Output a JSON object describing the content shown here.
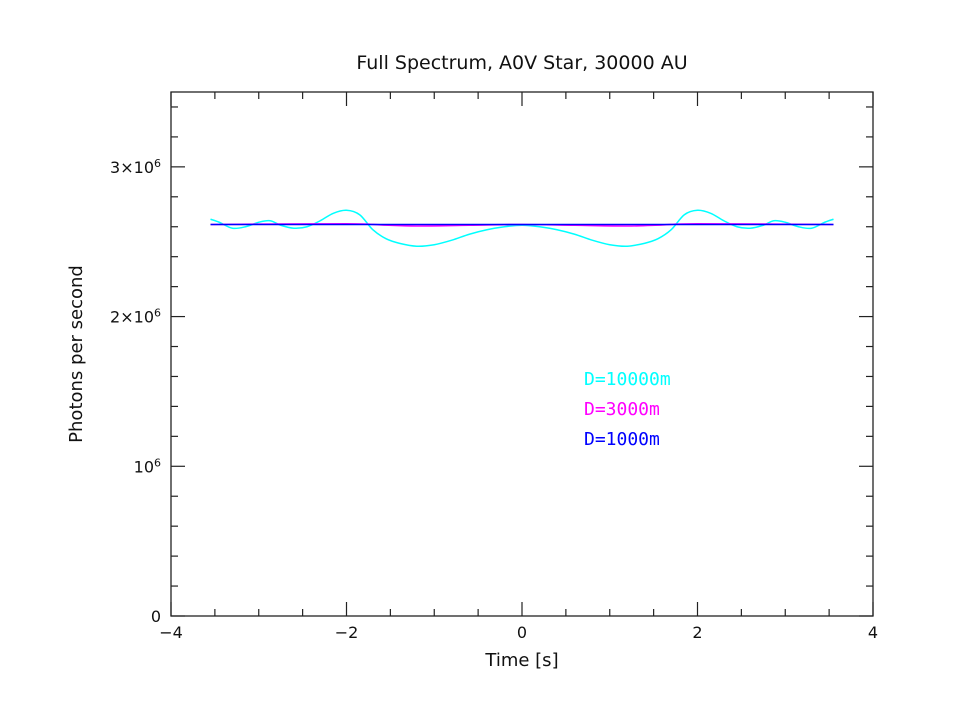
{
  "chart_data": {
    "type": "line",
    "title": "Full Spectrum, A0V Star, 30000 AU",
    "xlabel": "Time [s]",
    "ylabel": "Photons per second",
    "xlim": [
      -4,
      4
    ],
    "ylim": [
      0,
      3500000
    ],
    "x_ticks": [
      {
        "value": -4,
        "label": "−4"
      },
      {
        "value": -2,
        "label": "−2"
      },
      {
        "value": 0,
        "label": "0"
      },
      {
        "value": 2,
        "label": "2"
      },
      {
        "value": 4,
        "label": "4"
      }
    ],
    "y_ticks": [
      {
        "value": 0,
        "label": "0",
        "base": "0",
        "exp": ""
      },
      {
        "value": 1000000,
        "label": "10^6",
        "base": "10",
        "exp": "6"
      },
      {
        "value": 2000000,
        "label": "2×10^6",
        "base": "2×10",
        "exp": "6"
      },
      {
        "value": 3000000,
        "label": "3×10^6",
        "base": "3×10",
        "exp": "6"
      }
    ],
    "grid": false,
    "legend_position": "center-right",
    "series": [
      {
        "name": "D=10000m",
        "color": "#00ffff",
        "x": [
          -3.55,
          -3.45,
          -3.3,
          -3.15,
          -3.0,
          -2.87,
          -2.75,
          -2.6,
          -2.45,
          -2.3,
          -2.15,
          -2.0,
          -1.85,
          -1.7,
          -1.55,
          -1.4,
          -1.2,
          -1.0,
          -0.8,
          -0.6,
          -0.4,
          -0.2,
          0.0,
          0.2,
          0.4,
          0.6,
          0.8,
          1.0,
          1.2,
          1.4,
          1.55,
          1.7,
          1.85,
          2.0,
          2.15,
          2.3,
          2.45,
          2.6,
          2.75,
          2.87,
          3.0,
          3.15,
          3.3,
          3.45,
          3.55
        ],
        "y": [
          2650000,
          2630000,
          2590000,
          2600000,
          2630000,
          2640000,
          2610000,
          2590000,
          2600000,
          2640000,
          2690000,
          2710000,
          2680000,
          2580000,
          2520000,
          2490000,
          2470000,
          2480000,
          2510000,
          2550000,
          2580000,
          2600000,
          2610000,
          2600000,
          2580000,
          2550000,
          2510000,
          2480000,
          2470000,
          2490000,
          2520000,
          2580000,
          2680000,
          2710000,
          2690000,
          2640000,
          2600000,
          2590000,
          2610000,
          2640000,
          2630000,
          2600000,
          2590000,
          2630000,
          2650000
        ]
      },
      {
        "name": "D=3000m",
        "color": "#ff00ff",
        "x": [
          -3.55,
          -2.0,
          -1.6,
          -1.2,
          -0.6,
          0.0,
          0.6,
          1.2,
          1.6,
          2.0,
          3.55
        ],
        "y": [
          2615000,
          2620000,
          2612000,
          2605000,
          2610000,
          2615000,
          2610000,
          2605000,
          2612000,
          2620000,
          2615000
        ]
      },
      {
        "name": "D=1000m",
        "color": "#0000ff",
        "x": [
          -3.55,
          3.55
        ],
        "y": [
          2615000,
          2615000
        ]
      }
    ]
  }
}
